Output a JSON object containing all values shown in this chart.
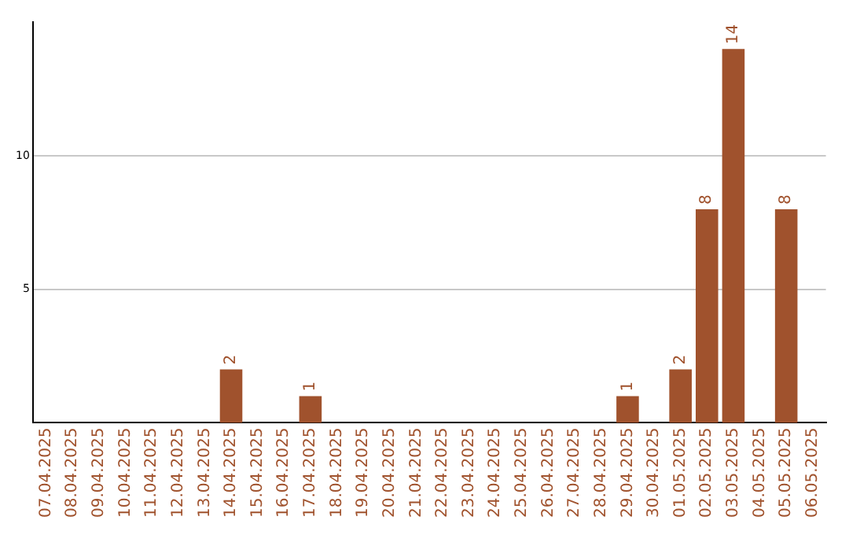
{
  "chart_data": {
    "type": "bar",
    "categories": [
      "07.04.2025",
      "08.04.2025",
      "09.04.2025",
      "10.04.2025",
      "11.04.2025",
      "12.04.2025",
      "13.04.2025",
      "14.04.2025",
      "15.04.2025",
      "16.04.2025",
      "17.04.2025",
      "18.04.2025",
      "19.04.2025",
      "20.04.2025",
      "21.04.2025",
      "22.04.2025",
      "23.04.2025",
      "24.04.2025",
      "25.04.2025",
      "26.04.2025",
      "27.04.2025",
      "28.04.2025",
      "29.04.2025",
      "30.04.2025",
      "01.05.2025",
      "02.05.2025",
      "03.05.2025",
      "04.05.2025",
      "05.05.2025",
      "06.05.2025"
    ],
    "values": [
      0,
      0,
      0,
      0,
      0,
      0,
      0,
      2,
      0,
      0,
      1,
      0,
      0,
      0,
      0,
      0,
      0,
      0,
      0,
      0,
      0,
      0,
      1,
      0,
      2,
      8,
      14,
      0,
      8,
      0
    ],
    "value_labels": [
      null,
      null,
      null,
      null,
      null,
      null,
      null,
      "2",
      null,
      null,
      "1",
      null,
      null,
      null,
      null,
      null,
      null,
      null,
      null,
      null,
      null,
      null,
      "1",
      null,
      "2",
      "8",
      "14",
      null,
      "8",
      null
    ],
    "color": "#a0522d",
    "ylim": [
      0,
      15
    ],
    "yticks": [
      5,
      10
    ],
    "grid": "y",
    "legend": false
  }
}
